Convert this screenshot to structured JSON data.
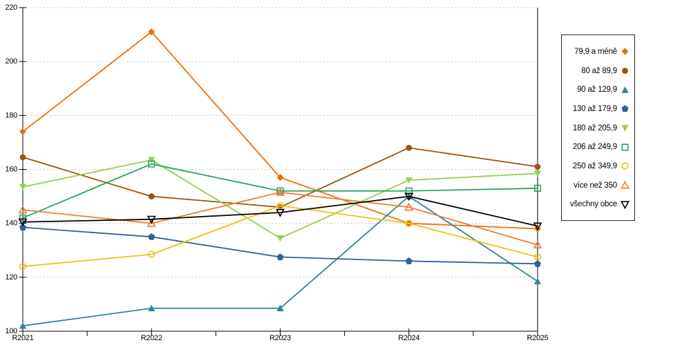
{
  "chart_data": {
    "type": "line",
    "title": "",
    "x_categories": [
      "R2021",
      "R2022",
      "R2023",
      "R2024",
      "R2025"
    ],
    "yticks": [
      100,
      120,
      140,
      160,
      180,
      200,
      220
    ],
    "ylim": [
      100,
      220
    ],
    "grid": "horizontal-dashed",
    "legend_position": "right",
    "series": [
      {
        "name": "79,9 a méně",
        "color": "#E8700A",
        "marker": "diamond",
        "marker_style": "filled",
        "values": [
          174,
          211,
          157,
          140,
          138
        ]
      },
      {
        "name": "80 až 89,9",
        "color": "#9A540D",
        "marker": "circle",
        "marker_style": "filled",
        "values": [
          164.5,
          150,
          146,
          168,
          161
        ]
      },
      {
        "name": "90 až 129,9",
        "color": "#2F8398",
        "marker": "triangle-up",
        "marker_style": "filled",
        "values": [
          102,
          108.5,
          108.5,
          150,
          118.5
        ]
      },
      {
        "name": "130 až 179,9",
        "color": "#325F96",
        "marker": "pentagon",
        "marker_style": "filled",
        "values": [
          138.5,
          135,
          127.5,
          126,
          125
        ]
      },
      {
        "name": "180 až 205,9",
        "color": "#92D050",
        "marker": "triangle-down",
        "marker_style": "filled",
        "values": [
          153.5,
          163.5,
          134.5,
          156,
          158.5
        ]
      },
      {
        "name": "206 až 249,9",
        "color": "#27A55C",
        "marker": "square",
        "marker_style": "hollow",
        "values": [
          142,
          162,
          152,
          152,
          153
        ]
      },
      {
        "name": "250 až 349,9",
        "color": "#EEBE1B",
        "marker": "circle",
        "marker_style": "hollow",
        "values": [
          124,
          128.5,
          146.5,
          140,
          127.5
        ]
      },
      {
        "name": "více než 350",
        "color": "#ED7D31",
        "marker": "triangle-up",
        "marker_style": "hollow",
        "values": [
          145,
          140,
          151.5,
          146,
          132
        ]
      },
      {
        "name": "všechny obce",
        "color": "#000000",
        "marker": "triangle-down",
        "marker_style": "hollow",
        "values": [
          140.5,
          141.5,
          144,
          150,
          139
        ]
      }
    ]
  },
  "colors": {
    "background": "#FFFFFF",
    "gridline": "#C6C6C6",
    "axis": "#000000",
    "legend_border": "#262626"
  }
}
